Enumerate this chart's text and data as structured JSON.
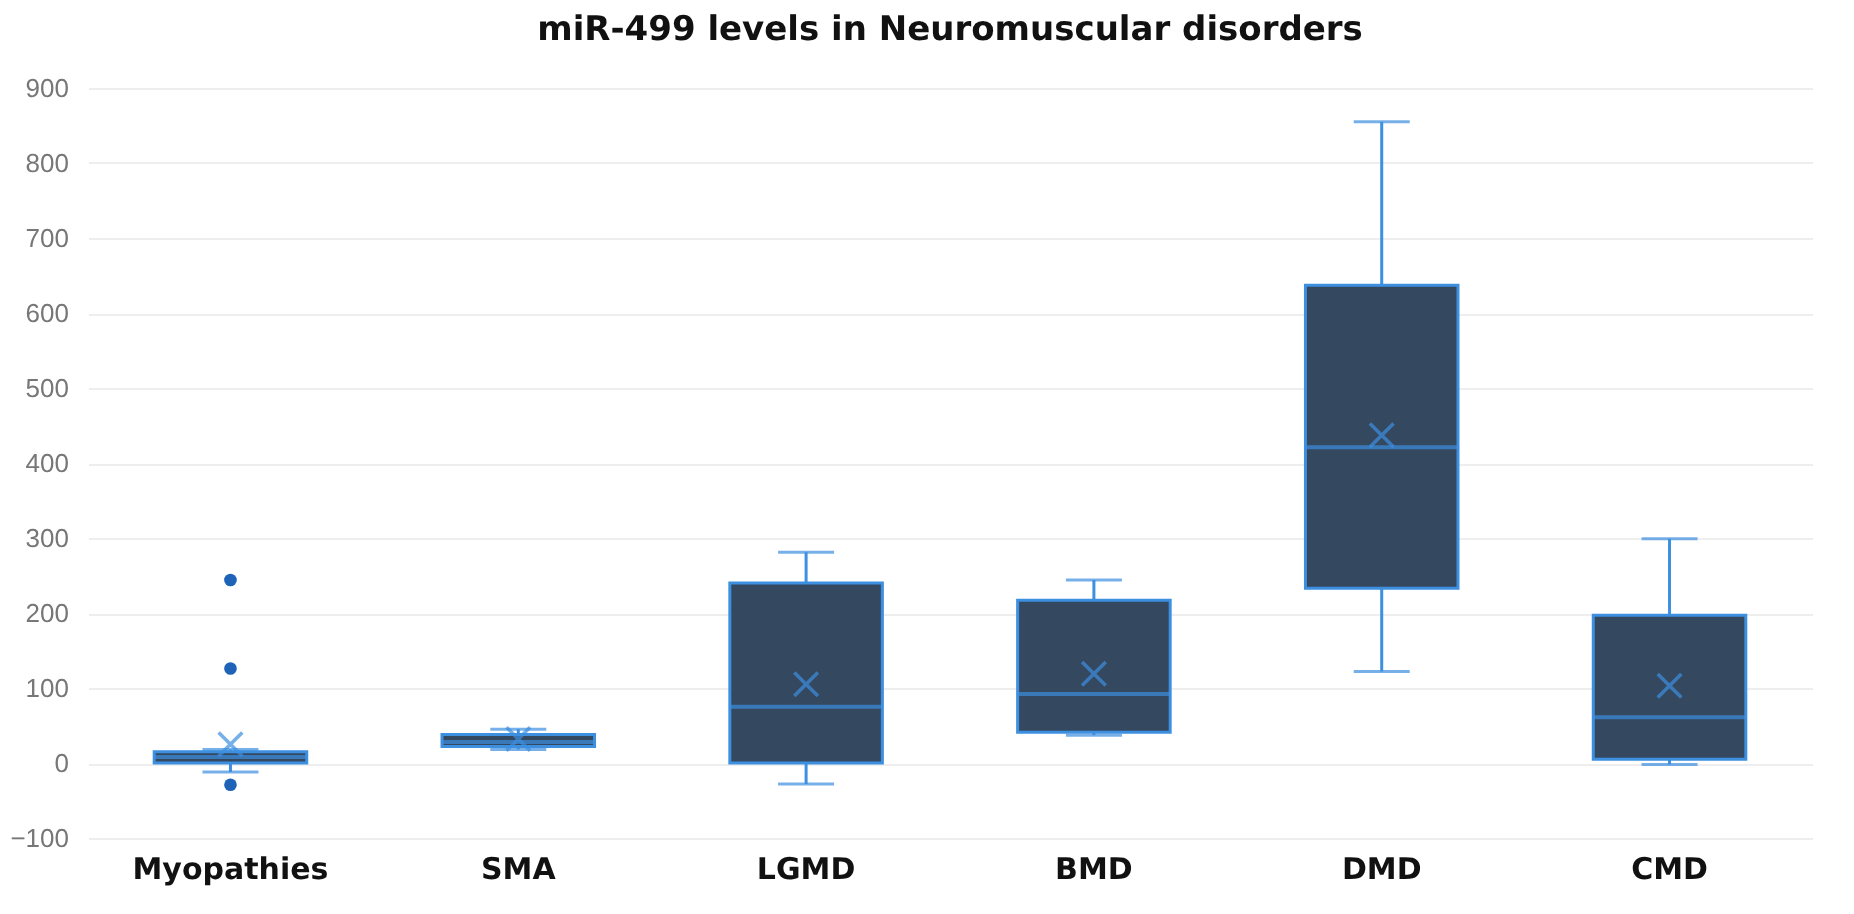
{
  "chart_data": {
    "type": "box",
    "title": "miR-499 levels in Neuromuscular disorders",
    "categories": [
      "Myopathies",
      "SMA",
      "LGMD",
      "BMD",
      "DMD",
      "CMD"
    ],
    "ylim": [
      -100,
      900
    ],
    "yticks": [
      -100,
      0,
      100,
      200,
      300,
      400,
      500,
      600,
      700,
      800,
      900
    ],
    "grid": "y",
    "series": [
      {
        "color": "#344860",
        "boxes": [
          {
            "low": -12,
            "q1": 0,
            "median": 8,
            "q3": 15,
            "high": 18,
            "mean": 25,
            "outliers": [
              244,
              126,
              -29
            ]
          },
          {
            "low": 18,
            "q1": 22,
            "median": 28,
            "q3": 38,
            "high": 45,
            "mean": 32
          },
          {
            "low": -28,
            "q1": 0,
            "median": 75,
            "q3": 240,
            "high": 281,
            "mean": 105
          },
          {
            "low": 37,
            "q1": 41,
            "median": 92,
            "q3": 217,
            "high": 244,
            "mean": 119
          },
          {
            "low": 122,
            "q1": 233,
            "median": 421,
            "q3": 637,
            "high": 855,
            "mean": 437
          },
          {
            "low": -2,
            "q1": 5,
            "median": 61,
            "q3": 197,
            "high": 299,
            "mean": 103
          }
        ]
      }
    ]
  }
}
